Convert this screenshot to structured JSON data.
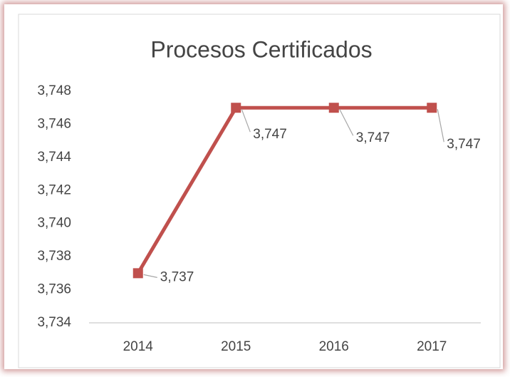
{
  "chart_data": {
    "type": "line",
    "title": "Procesos Certificados",
    "categories": [
      "2014",
      "2015",
      "2016",
      "2017"
    ],
    "series": [
      {
        "name": "Procesos Certificados",
        "color": "#c0504d",
        "values": [
          3737,
          3747,
          3747,
          3747
        ],
        "value_labels": [
          "3,737",
          "3,747",
          "3,747",
          "3,747"
        ]
      }
    ],
    "ylim": [
      3734,
      3748
    ],
    "yticks": [
      {
        "value": 3734,
        "label": "3,734"
      },
      {
        "value": 3736,
        "label": "3,736"
      },
      {
        "value": 3738,
        "label": "3,738"
      },
      {
        "value": 3740,
        "label": "3,740"
      },
      {
        "value": 3742,
        "label": "3,742"
      },
      {
        "value": 3744,
        "label": "3,744"
      },
      {
        "value": 3746,
        "label": "3,746"
      },
      {
        "value": 3748,
        "label": "3,748"
      }
    ],
    "grid": false
  }
}
